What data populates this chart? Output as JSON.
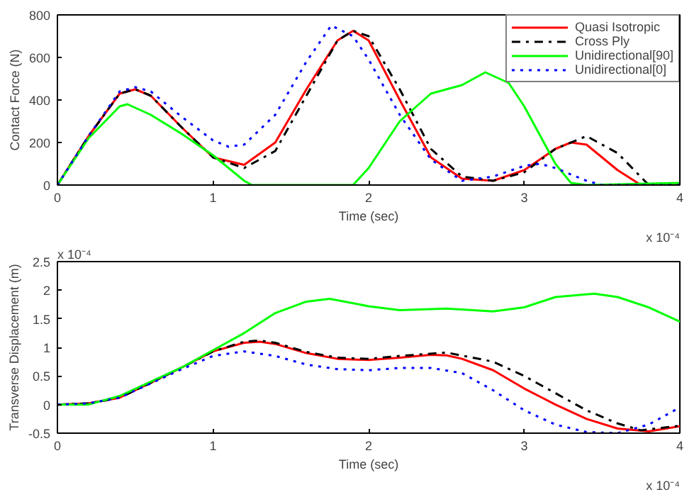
{
  "chart_data": [
    {
      "type": "line",
      "xlabel": "Time (sec)",
      "ylabel": "Contact Force (N)",
      "xlim": [
        0,
        4
      ],
      "xticks": [
        0,
        1,
        2,
        3,
        4
      ],
      "ylim": [
        0,
        800
      ],
      "yticks": [
        0,
        200,
        400,
        600,
        800
      ],
      "grid": false,
      "legend": "top right",
      "annotations": [
        "x 10⁻⁴"
      ],
      "series": [
        {
          "name": "Quasi Isotropic",
          "color": "#ff0000",
          "line_style": "solid",
          "x": [
            0,
            0.2,
            0.4,
            0.5,
            0.6,
            0.8,
            1.0,
            1.2,
            1.4,
            1.6,
            1.8,
            1.9,
            2.0,
            2.2,
            2.4,
            2.6,
            2.8,
            3.0,
            3.2,
            3.3,
            3.4,
            3.6,
            3.75,
            4.0
          ],
          "values": [
            0,
            230,
            430,
            450,
            420,
            270,
            130,
            95,
            200,
            450,
            680,
            725,
            680,
            400,
            130,
            30,
            20,
            70,
            170,
            200,
            190,
            70,
            0,
            0
          ]
        },
        {
          "name": "Cross Ply",
          "color": "#000000",
          "line_style": "dashdot",
          "x": [
            0,
            0.2,
            0.4,
            0.5,
            0.6,
            0.8,
            1.0,
            1.2,
            1.4,
            1.6,
            1.8,
            1.9,
            2.0,
            2.2,
            2.4,
            2.6,
            2.8,
            3.0,
            3.2,
            3.4,
            3.6,
            3.8,
            4.0
          ],
          "values": [
            0,
            230,
            430,
            450,
            420,
            270,
            130,
            80,
            160,
            420,
            680,
            725,
            700,
            450,
            170,
            40,
            20,
            60,
            170,
            230,
            150,
            0,
            0
          ]
        },
        {
          "name": "Unidirectional[90]",
          "color": "#00ff00",
          "line_style": "solid",
          "x": [
            0,
            0.2,
            0.4,
            0.45,
            0.6,
            0.8,
            1.0,
            1.2,
            1.25,
            1.9,
            2.0,
            2.2,
            2.4,
            2.6,
            2.75,
            2.9,
            3.0,
            3.2,
            3.3,
            3.4,
            4.0
          ],
          "values": [
            0,
            220,
            370,
            380,
            330,
            240,
            140,
            20,
            0,
            0,
            80,
            300,
            430,
            470,
            530,
            480,
            370,
            100,
            10,
            0,
            10
          ]
        },
        {
          "name": "Unidirectional[0]",
          "color": "#0000ff",
          "line_style": "dotted",
          "x": [
            0,
            0.2,
            0.4,
            0.5,
            0.6,
            0.8,
            1.0,
            1.1,
            1.2,
            1.4,
            1.6,
            1.76,
            1.9,
            2.0,
            2.2,
            2.4,
            2.6,
            2.8,
            3.0,
            3.1,
            3.2,
            3.4,
            3.5,
            4.0
          ],
          "values": [
            0,
            230,
            440,
            460,
            440,
            320,
            210,
            180,
            190,
            330,
            580,
            750,
            700,
            590,
            330,
            120,
            20,
            40,
            90,
            100,
            80,
            20,
            0,
            0
          ]
        }
      ]
    },
    {
      "type": "line",
      "xlabel": "Time (sec)",
      "ylabel": "Transverse Displacement (m)",
      "xlim": [
        0,
        4
      ],
      "xticks": [
        0,
        1,
        2,
        3,
        4
      ],
      "ylim": [
        -0.5,
        2.5
      ],
      "yticks": [
        -0.5,
        0,
        0.5,
        1,
        1.5,
        2,
        2.5
      ],
      "grid": false,
      "annotations": [
        "x 10⁻⁴",
        "x 10⁻⁴"
      ],
      "series": [
        {
          "color": "#ff0000",
          "line_style": "solid",
          "x": [
            0,
            0.2,
            0.4,
            0.6,
            0.8,
            1.0,
            1.2,
            1.3,
            1.4,
            1.6,
            1.8,
            2.0,
            2.2,
            2.4,
            2.5,
            2.6,
            2.8,
            3.0,
            3.2,
            3.4,
            3.6,
            3.8,
            4.0
          ],
          "values": [
            0,
            0.02,
            0.12,
            0.38,
            0.65,
            0.93,
            1.08,
            1.1,
            1.06,
            0.9,
            0.8,
            0.78,
            0.82,
            0.87,
            0.86,
            0.8,
            0.6,
            0.28,
            0,
            -0.25,
            -0.42,
            -0.47,
            -0.38
          ]
        },
        {
          "color": "#000000",
          "line_style": "dashdot",
          "x": [
            0,
            0.2,
            0.4,
            0.6,
            0.8,
            1.0,
            1.2,
            1.3,
            1.4,
            1.6,
            1.8,
            2.0,
            2.2,
            2.5,
            2.8,
            3.0,
            3.2,
            3.4,
            3.6,
            3.75,
            4.0
          ],
          "values": [
            0,
            0.02,
            0.12,
            0.38,
            0.65,
            0.93,
            1.1,
            1.12,
            1.08,
            0.92,
            0.82,
            0.8,
            0.85,
            0.91,
            0.75,
            0.5,
            0.2,
            -0.1,
            -0.33,
            -0.45,
            -0.37
          ]
        },
        {
          "color": "#00ff00",
          "line_style": "solid",
          "x": [
            0,
            0.2,
            0.4,
            0.6,
            0.8,
            1.0,
            1.2,
            1.4,
            1.6,
            1.75,
            2.0,
            2.2,
            2.5,
            2.8,
            3.0,
            3.2,
            3.45,
            3.6,
            3.8,
            4.0
          ],
          "values": [
            0,
            0,
            0.15,
            0.4,
            0.65,
            0.95,
            1.25,
            1.6,
            1.8,
            1.85,
            1.72,
            1.65,
            1.68,
            1.63,
            1.7,
            1.88,
            1.94,
            1.88,
            1.7,
            1.45
          ]
        },
        {
          "color": "#0000ff",
          "line_style": "dotted",
          "x": [
            0,
            0.2,
            0.4,
            0.6,
            0.8,
            1.0,
            1.2,
            1.4,
            1.6,
            1.8,
            2.0,
            2.2,
            2.4,
            2.6,
            2.8,
            3.0,
            3.2,
            3.4,
            3.6,
            3.8,
            4.0
          ],
          "values": [
            0,
            0.02,
            0.12,
            0.37,
            0.62,
            0.85,
            0.93,
            0.85,
            0.7,
            0.62,
            0.6,
            0.64,
            0.64,
            0.55,
            0.25,
            -0.1,
            -0.35,
            -0.48,
            -0.5,
            -0.35,
            -0.05
          ]
        }
      ]
    }
  ]
}
